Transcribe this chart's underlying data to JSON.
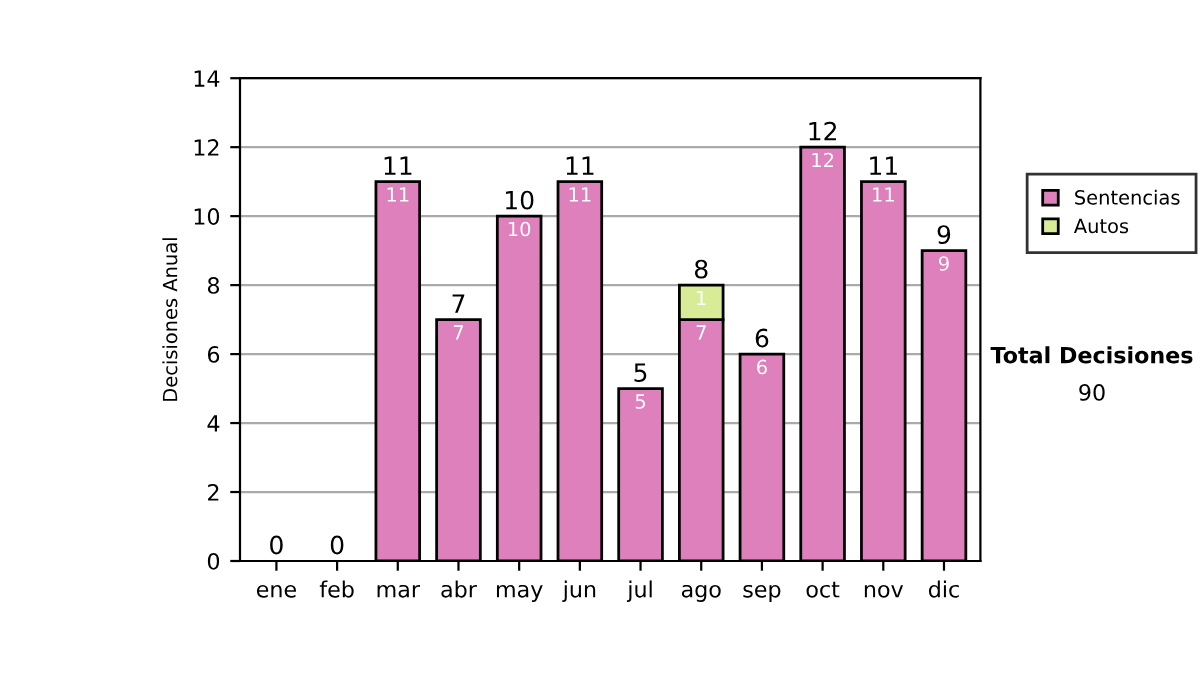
{
  "chart_data": {
    "type": "bar",
    "stacked": true,
    "ylabel": "Decisiones Anual",
    "categories": [
      "ene",
      "feb",
      "mar",
      "abr",
      "may",
      "jun",
      "jul",
      "ago",
      "sep",
      "oct",
      "nov",
      "dic"
    ],
    "series": [
      {
        "name": "Sentencias",
        "color": "#dd80bb",
        "values": [
          0,
          0,
          11,
          7,
          10,
          11,
          5,
          7,
          6,
          12,
          11,
          9
        ],
        "value_labels": [
          null,
          null,
          "11",
          "7",
          "10",
          "11",
          "5",
          "7",
          "6",
          "12",
          "11",
          "9"
        ]
      },
      {
        "name": "Autos",
        "color": "#d8ec98",
        "values": [
          0,
          0,
          0,
          0,
          0,
          0,
          0,
          1,
          0,
          0,
          0,
          0
        ],
        "value_labels": [
          null,
          null,
          null,
          null,
          null,
          null,
          null,
          "1",
          null,
          null,
          null,
          null
        ]
      }
    ],
    "totals": [
      "0",
      "0",
      "11",
      "7",
      "10",
      "11",
      "5",
      "8",
      "6",
      "12",
      "11",
      "9"
    ],
    "ylim": [
      0,
      14
    ],
    "yticks": [
      0,
      2,
      4,
      6,
      8,
      10,
      12,
      14
    ],
    "grid": "y",
    "legend": "right",
    "annotations": [
      "Total Decisiones",
      "90"
    ]
  }
}
